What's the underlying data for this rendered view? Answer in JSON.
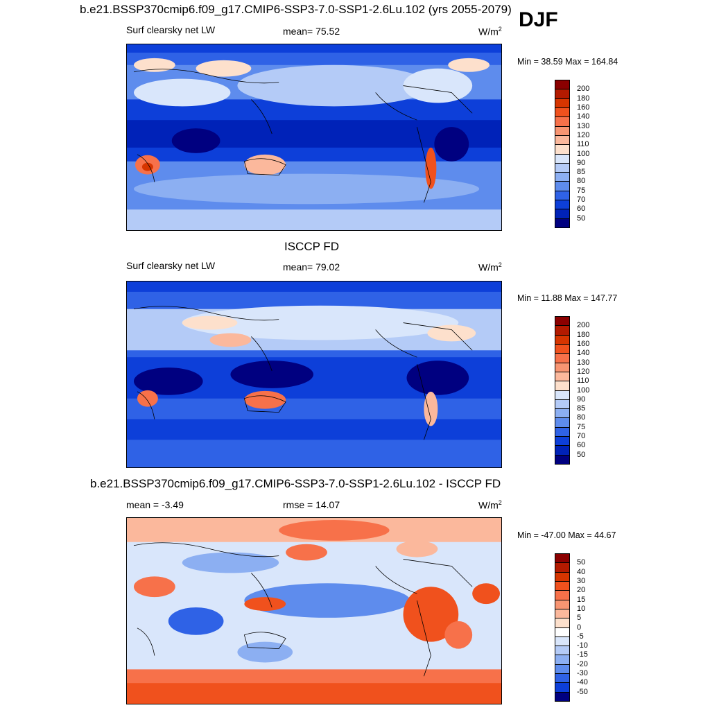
{
  "season": "DJF",
  "panels": [
    {
      "title": "b.e21.BSSP370cmip6.f09_g17.CMIP6-SSP3-7.0-SSP1-2.6Lu.102 (yrs 2055-2079)",
      "left_label": "Surf clearsky net LW",
      "center_label": "mean=  75.52",
      "units": "W/m",
      "units_sup": "2",
      "minmax": "Min =  38.59 Max = 164.84",
      "colorbar": {
        "labels": [
          "200",
          "180",
          "160",
          "140",
          "130",
          "120",
          "110",
          "100",
          "90",
          "85",
          "80",
          "75",
          "70",
          "60",
          "50"
        ],
        "colors": [
          "#8b0000",
          "#b31a00",
          "#d63500",
          "#f0511d",
          "#f7714a",
          "#f89572",
          "#fbb89c",
          "#fde0cc",
          "#d9e6fb",
          "#b4cbf7",
          "#8caff2",
          "#5e8ced",
          "#2f62e6",
          "#0d3fd9",
          "#0022b8",
          "#000080"
        ]
      }
    },
    {
      "title": "ISCCP FD",
      "left_label": "Surf clearsky net LW",
      "center_label": "mean=  79.02",
      "units": "W/m",
      "units_sup": "2",
      "minmax": "Min =  11.88 Max = 147.77",
      "colorbar": {
        "labels": [
          "200",
          "180",
          "160",
          "140",
          "130",
          "120",
          "110",
          "100",
          "90",
          "85",
          "80",
          "75",
          "70",
          "60",
          "50"
        ],
        "colors": [
          "#8b0000",
          "#b31a00",
          "#d63500",
          "#f0511d",
          "#f7714a",
          "#f89572",
          "#fbb89c",
          "#fde0cc",
          "#d9e6fb",
          "#b4cbf7",
          "#8caff2",
          "#5e8ced",
          "#2f62e6",
          "#0d3fd9",
          "#0022b8",
          "#000080"
        ]
      }
    },
    {
      "title": "b.e21.BSSP370cmip6.f09_g17.CMIP6-SSP3-7.0-SSP1-2.6Lu.102 - ISCCP FD",
      "left_label": "mean =  -3.49",
      "center_label": "rmse =  14.07",
      "units": "W/m",
      "units_sup": "2",
      "minmax": "Min = -47.00 Max =  44.67",
      "colorbar": {
        "labels": [
          "50",
          "40",
          "30",
          "20",
          "15",
          "10",
          "5",
          "0",
          "-5",
          "-10",
          "-15",
          "-20",
          "-30",
          "-40",
          "-50"
        ],
        "colors": [
          "#8b0000",
          "#b31a00",
          "#d63500",
          "#f0511d",
          "#f7714a",
          "#f89572",
          "#fbb89c",
          "#fde0cc",
          "#ffffff",
          "#d9e6fb",
          "#b4cbf7",
          "#8caff2",
          "#5e8ced",
          "#2f62e6",
          "#0d3fd9",
          "#000080"
        ]
      }
    }
  ]
}
